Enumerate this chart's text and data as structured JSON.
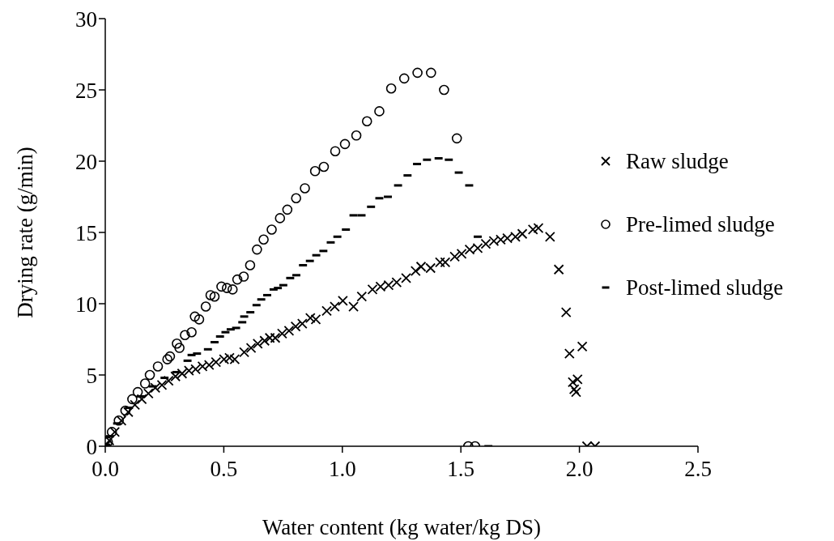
{
  "chart_data": {
    "type": "scatter",
    "xlabel": "Water content (kg water/kg DS)",
    "ylabel": "Drying rate (g/min)",
    "xlim": [
      0,
      2.5
    ],
    "xticks": [
      {
        "value": 0,
        "label": "0.0"
      },
      {
        "value": 0.5,
        "label": "0.5"
      },
      {
        "value": 1,
        "label": "1.0"
      },
      {
        "value": 1.5,
        "label": "1.5"
      },
      {
        "value": 2,
        "label": "2.0"
      },
      {
        "value": 2.5,
        "label": "2.5"
      }
    ],
    "ylim": [
      0,
      30
    ],
    "yticks": [
      0,
      5,
      10,
      15,
      20,
      25,
      30
    ],
    "legend": "right",
    "series": [
      {
        "name": "Raw sludge",
        "color": "#000000",
        "marker": "cross",
        "x": [
          0.005,
          0.017,
          0.04,
          0.068,
          0.097,
          0.125,
          0.154,
          0.182,
          0.211,
          0.239,
          0.267,
          0.296,
          0.324,
          0.353,
          0.381,
          0.41,
          0.438,
          0.467,
          0.501,
          0.524,
          0.546,
          0.586,
          0.615,
          0.643,
          0.672,
          0.694,
          0.717,
          0.746,
          0.775,
          0.803,
          0.831,
          0.865,
          0.888,
          0.934,
          0.968,
          1.002,
          1.047,
          1.082,
          1.127,
          1.161,
          1.195,
          1.229,
          1.269,
          1.309,
          1.332,
          1.372,
          1.412,
          1.434,
          1.474,
          1.503,
          1.537,
          1.571,
          1.605,
          1.639,
          1.668,
          1.696,
          1.73,
          1.759,
          1.804,
          1.827,
          1.876,
          1.913,
          1.944,
          1.958,
          2.012,
          1.992,
          1.972,
          1.978,
          1.986,
          2.032,
          2.066
        ],
        "values": [
          0.1,
          0.4,
          1.0,
          1.8,
          2.4,
          2.9,
          3.3,
          3.7,
          4.1,
          4.3,
          4.6,
          4.9,
          5.1,
          5.3,
          5.4,
          5.6,
          5.7,
          5.9,
          6.1,
          6.2,
          6.1,
          6.6,
          6.9,
          7.2,
          7.4,
          7.6,
          7.6,
          7.9,
          8.1,
          8.4,
          8.6,
          9.0,
          8.9,
          9.5,
          9.8,
          10.2,
          9.8,
          10.5,
          11.0,
          11.2,
          11.3,
          11.5,
          11.8,
          12.3,
          12.6,
          12.5,
          12.9,
          12.9,
          13.3,
          13.5,
          13.8,
          13.9,
          14.2,
          14.4,
          14.5,
          14.6,
          14.7,
          14.9,
          15.2,
          15.3,
          14.7,
          12.4,
          9.4,
          6.5,
          7.0,
          4.7,
          4.5,
          4.0,
          3.8,
          0,
          0
        ]
      },
      {
        "name": "Pre-limed sludge",
        "color": "#000000",
        "marker": "circle",
        "x": [
          0.011,
          0.028,
          0.057,
          0.085,
          0.114,
          0.137,
          0.168,
          0.188,
          0.222,
          0.262,
          0.273,
          0.302,
          0.313,
          0.336,
          0.364,
          0.378,
          0.396,
          0.424,
          0.444,
          0.461,
          0.49,
          0.513,
          0.537,
          0.557,
          0.584,
          0.611,
          0.64,
          0.668,
          0.702,
          0.737,
          0.768,
          0.805,
          0.842,
          0.885,
          0.922,
          0.97,
          1.011,
          1.059,
          1.104,
          1.156,
          1.206,
          1.261,
          1.317,
          1.374,
          1.429,
          1.483,
          1.531,
          1.56
        ],
        "values": [
          0.3,
          1.0,
          1.8,
          2.5,
          3.3,
          3.8,
          4.4,
          5.0,
          5.6,
          6.1,
          6.3,
          7.2,
          6.9,
          7.8,
          8.0,
          9.1,
          8.9,
          9.8,
          10.6,
          10.5,
          11.2,
          11.1,
          11.0,
          11.7,
          11.9,
          12.7,
          13.8,
          14.5,
          15.2,
          16.0,
          16.6,
          17.4,
          18.1,
          19.3,
          19.6,
          20.7,
          21.2,
          21.8,
          22.8,
          23.5,
          25.1,
          25.8,
          26.2,
          26.2,
          25.0,
          21.6,
          0,
          0
        ]
      },
      {
        "name": "Post-limed sludge",
        "color": "#000000",
        "x": [
          0.005,
          0.02,
          0.05,
          0.1,
          0.15,
          0.2,
          0.25,
          0.3,
          0.347,
          0.364,
          0.387,
          0.433,
          0.461,
          0.484,
          0.507,
          0.529,
          0.552,
          0.578,
          0.586,
          0.612,
          0.638,
          0.658,
          0.683,
          0.71,
          0.728,
          0.751,
          0.78,
          0.806,
          0.834,
          0.863,
          0.89,
          0.92,
          0.951,
          0.979,
          1.015,
          1.047,
          1.081,
          1.121,
          1.156,
          1.192,
          1.235,
          1.275,
          1.315,
          1.357,
          1.406,
          1.449,
          1.491,
          1.535,
          1.571,
          1.616
        ],
        "values": [
          0.1,
          0.7,
          1.6,
          2.7,
          3.5,
          4.2,
          4.8,
          5.2,
          6.0,
          6.4,
          6.5,
          6.8,
          7.3,
          7.7,
          8.0,
          8.2,
          8.3,
          8.7,
          9.1,
          9.4,
          9.9,
          10.3,
          10.6,
          11.0,
          11.1,
          11.3,
          11.8,
          12.0,
          12.7,
          13.0,
          13.4,
          13.7,
          14.3,
          14.7,
          15.2,
          16.2,
          16.2,
          16.8,
          17.4,
          17.5,
          18.3,
          19.0,
          19.8,
          20.1,
          20.2,
          20.1,
          19.2,
          18.3,
          14.7,
          0
        ]
      }
    ]
  }
}
